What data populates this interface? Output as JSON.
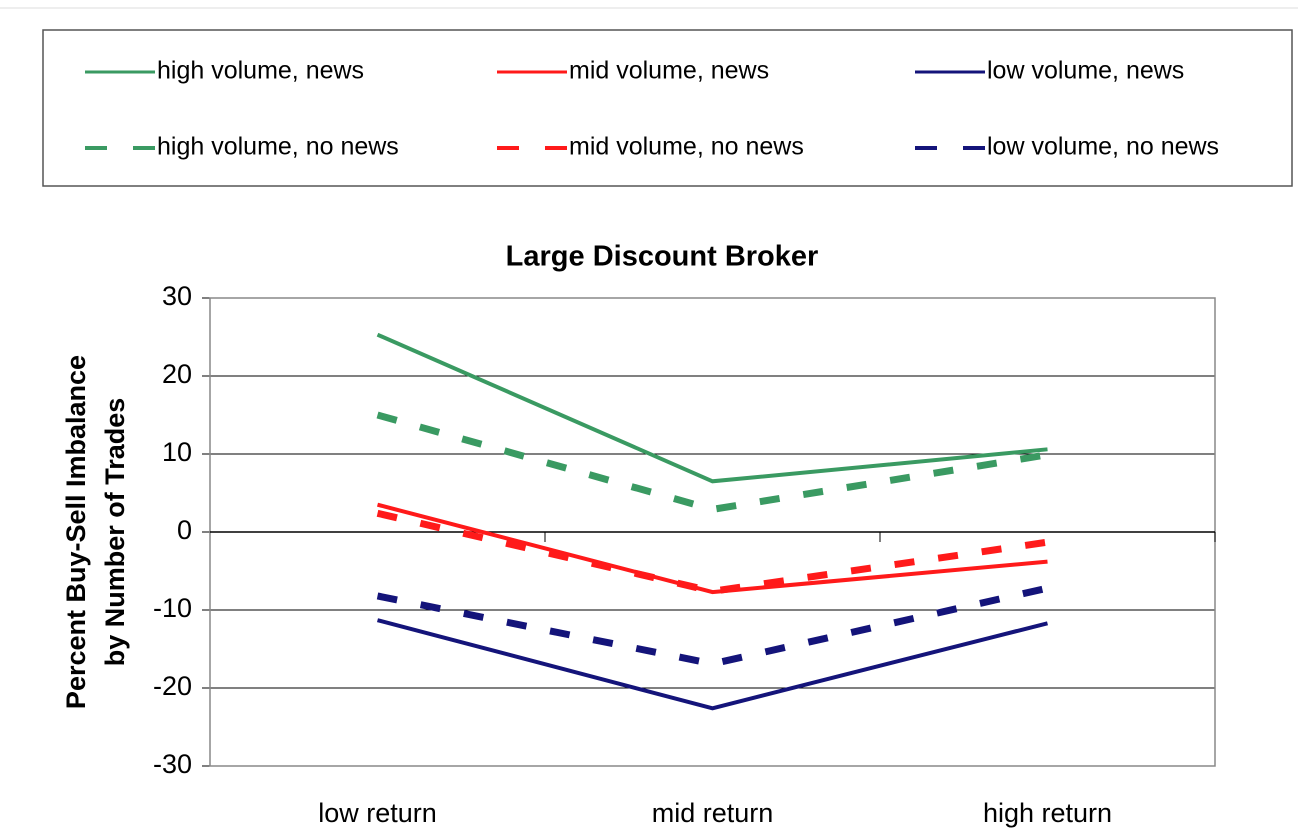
{
  "chart_data": {
    "type": "line",
    "title": "Large Discount Broker",
    "ylabel": [
      "Percent Buy-Sell Imbalance",
      "by Number of Trades"
    ],
    "categories": [
      "low return",
      "mid return",
      "high return"
    ],
    "ylim": [
      -30,
      30
    ],
    "yticks": [
      -30,
      -20,
      -10,
      0,
      10,
      20,
      30
    ],
    "grid": true,
    "legend": "top",
    "series": [
      {
        "name": "high volume, news",
        "color": "#3a9a62",
        "dashed": false,
        "values": [
          25.3,
          6.5,
          10.6
        ]
      },
      {
        "name": "mid volume, news",
        "color": "#ff1a1a",
        "dashed": false,
        "values": [
          3.5,
          -7.7,
          -3.8
        ]
      },
      {
        "name": "low volume, news",
        "color": "#14147a",
        "dashed": false,
        "values": [
          -11.3,
          -22.6,
          -11.7
        ]
      },
      {
        "name": "high volume, no news",
        "color": "#3a9a62",
        "dashed": true,
        "values": [
          15,
          2.9,
          9.9
        ]
      },
      {
        "name": "mid volume, no news",
        "color": "#ff1a1a",
        "dashed": true,
        "values": [
          2.4,
          -7.6,
          -1.3
        ]
      },
      {
        "name": "low volume, no news",
        "color": "#14147a",
        "dashed": true,
        "values": [
          -8.2,
          -16.9,
          -7.2
        ]
      }
    ]
  }
}
